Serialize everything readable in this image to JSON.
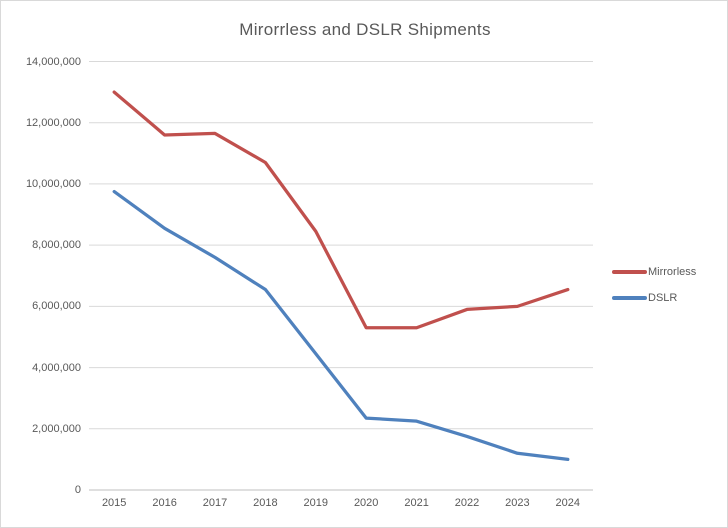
{
  "chart_data": {
    "type": "line",
    "title": "Mirorrless and DSLR Shipments",
    "categories": [
      "2015",
      "2016",
      "2017",
      "2018",
      "2019",
      "2020",
      "2021",
      "2022",
      "2023",
      "2024"
    ],
    "series": [
      {
        "name": "Mirrorless",
        "color": "#C0504D",
        "values": [
          13000000,
          11600000,
          11650000,
          10700000,
          8450000,
          5300000,
          5300000,
          5900000,
          6000000,
          6550000
        ]
      },
      {
        "name": "DSLR",
        "color": "#4F81BD",
        "values": [
          9750000,
          8550000,
          7600000,
          6550000,
          4450000,
          2350000,
          2250000,
          1750000,
          1200000,
          1000000
        ]
      }
    ],
    "xlabel": "",
    "ylabel": "",
    "ylim": [
      0,
      14000000
    ],
    "ytick_interval": 2000000,
    "ytick_labels": [
      "0",
      "2,000,000",
      "4,000,000",
      "6,000,000",
      "8,000,000",
      "10,000,000",
      "12,000,000",
      "14,000,000"
    ],
    "grid": true,
    "legend_position": "right"
  },
  "colors": {
    "background": "#FFFFFF",
    "border": "#D9D9D9",
    "gridline": "#D9D9D9",
    "axis_line": "#BFBFBF",
    "title_text": "#595959",
    "axis_text": "#595959",
    "legend_text": "#595959"
  }
}
